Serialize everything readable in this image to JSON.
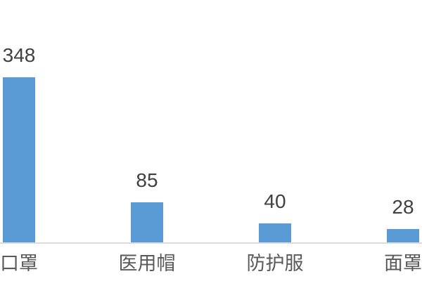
{
  "chart_data": {
    "type": "bar",
    "categories": [
      "口罩",
      "医用帽",
      "防护服",
      "面罩"
    ],
    "values": [
      348,
      85,
      40,
      28
    ],
    "data_labels": [
      "348",
      "85",
      "40",
      "28"
    ],
    "title": "",
    "xlabel": "",
    "ylabel": "",
    "ylim": [
      0,
      360
    ],
    "grid": false,
    "legend": false,
    "bar_color": "#5B9BD5",
    "axis_line_color": "#dcdcdc",
    "value_label_color": "#404040",
    "category_label_color": "#595959"
  }
}
